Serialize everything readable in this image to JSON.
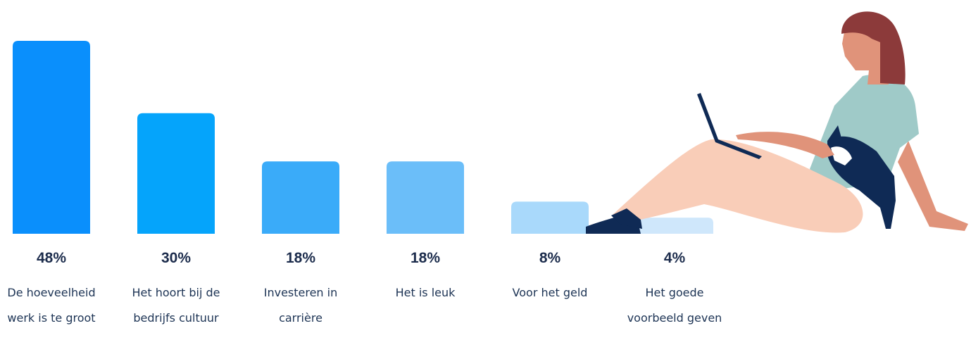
{
  "chart_data": {
    "type": "bar",
    "categories": [
      "De hoeveelheid werk is te groot",
      "Het hoort bij de bedrijfs cultuur",
      "Investeren in carrière",
      "Het is leuk",
      "Voor het geld",
      "Het goede voorbeeld geven"
    ],
    "values": [
      48,
      30,
      18,
      18,
      8,
      4
    ],
    "value_labels": [
      "48%",
      "30%",
      "18%",
      "18%",
      "8%",
      "4%"
    ],
    "colors": [
      "#0a8ffc",
      "#05a4fb",
      "#3aabf9",
      "#6bbef9",
      "#a9d9fb",
      "#cfe7fb"
    ]
  }
}
